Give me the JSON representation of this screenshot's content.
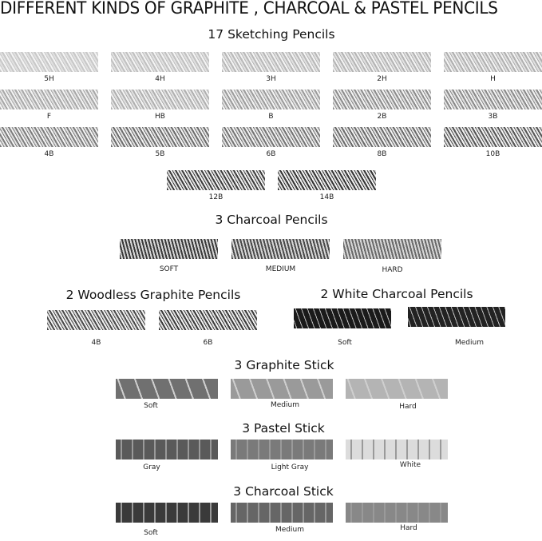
{
  "title": "DIFFERENT KINDS OF GRAPHITE , CHARCOAL & PASTEL PENCILS",
  "sections": [
    {
      "title": "17 Sketching Pencils",
      "texture": "diagonal-hatch",
      "items": [
        {
          "label": "5H",
          "shade": "#c8c8c8"
        },
        {
          "label": "4H",
          "shade": "#c0c0c0"
        },
        {
          "label": "3H",
          "shade": "#b8b8b8"
        },
        {
          "label": "2H",
          "shade": "#b4b4b4"
        },
        {
          "label": "H",
          "shade": "#b0b0b0"
        },
        {
          "label": "F",
          "shade": "#a8a8a8"
        },
        {
          "label": "HB",
          "shade": "#b0b0b0"
        },
        {
          "label": "B",
          "shade": "#9c9c9c"
        },
        {
          "label": "2B",
          "shade": "#8c8c8c"
        },
        {
          "label": "3B",
          "shade": "#8a8a8a"
        },
        {
          "label": "4B",
          "shade": "#7c7c7c"
        },
        {
          "label": "5B",
          "shade": "#6c6c6c"
        },
        {
          "label": "6B",
          "shade": "#747474"
        },
        {
          "label": "8B",
          "shade": "#6a6a6a"
        },
        {
          "label": "10B",
          "shade": "#555555"
        },
        {
          "label": "12B",
          "shade": "#3c3c3c"
        },
        {
          "label": "14B",
          "shade": "#333333"
        }
      ]
    },
    {
      "title": "3 Charcoal Pencils",
      "texture": "zigzag",
      "items": [
        {
          "label": "SOFT",
          "shade": "#3a3a3a"
        },
        {
          "label": "MEDIUM",
          "shade": "#4a4a4a"
        },
        {
          "label": "HARD",
          "shade": "#6a6a6a"
        }
      ]
    },
    {
      "title": "2 Woodless Graphite Pencils",
      "texture": "diagonal-hatch",
      "items": [
        {
          "label": "4B",
          "shade": "#4a4a4a"
        },
        {
          "label": "6B",
          "shade": "#3a3a3a"
        }
      ]
    },
    {
      "title": "2 White Charcoal Pencils",
      "texture": "white-on-black",
      "items": [
        {
          "label": "Soft",
          "shade": "#1a1a1a"
        },
        {
          "label": "Medium",
          "shade": "#222222"
        }
      ]
    },
    {
      "title": "3  Graphite Stick",
      "texture": "broad-stroke",
      "items": [
        {
          "label": "Soft",
          "shade": "#707070"
        },
        {
          "label": "Medium",
          "shade": "#9a9a9a"
        },
        {
          "label": "Hard",
          "shade": "#b4b4b4"
        }
      ]
    },
    {
      "title": "3 Pastel Stick",
      "texture": "grain",
      "items": [
        {
          "label": "Gray",
          "shade": "#5a5a5a"
        },
        {
          "label": "Light Gray",
          "shade": "#7a7a7a"
        },
        {
          "label": "White",
          "shade": "#dcdcdc"
        }
      ]
    },
    {
      "title": "3 Charcoal Stick",
      "texture": "grain",
      "items": [
        {
          "label": "Soft",
          "shade": "#3a3a3a"
        },
        {
          "label": "Medium",
          "shade": "#666666"
        },
        {
          "label": "Hard",
          "shade": "#888888"
        }
      ]
    }
  ]
}
